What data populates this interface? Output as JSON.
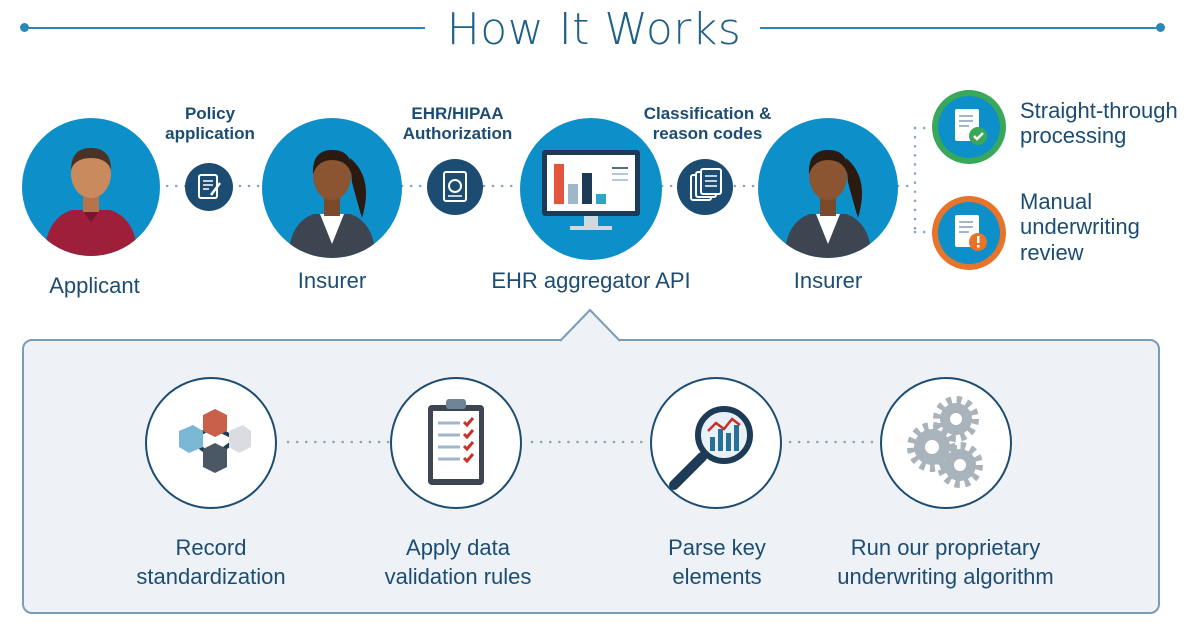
{
  "title": "How It Works",
  "nodes": {
    "applicant": "Applicant",
    "insurer1": "Insurer",
    "aggregator": "EHR aggregator API",
    "insurer2": "Insurer"
  },
  "connectors": {
    "c1_line1": "Policy",
    "c1_line2": "application",
    "c2_line1": "EHR/HIPAA",
    "c2_line2": "Authorization",
    "c3_line1": "Classification &",
    "c3_line2": "reason codes"
  },
  "outcomes": {
    "o1_line1": "Straight-through",
    "o1_line2": "processing",
    "o2_line1": "Manual",
    "o2_line2": "underwriting",
    "o2_line3": "review"
  },
  "steps": {
    "s1_line1": "Record",
    "s1_line2": "standardization",
    "s2_line1": "Apply data",
    "s2_line2": "validation rules",
    "s3_line1": "Parse key",
    "s3_line2": "elements",
    "s4_line1": "Run our proprietary",
    "s4_line2": "underwriting algorithm"
  },
  "colors": {
    "primary_blue": "#0d8fc9",
    "dark_blue": "#1d4c72",
    "green": "#3aa85a",
    "orange": "#e8742a"
  }
}
